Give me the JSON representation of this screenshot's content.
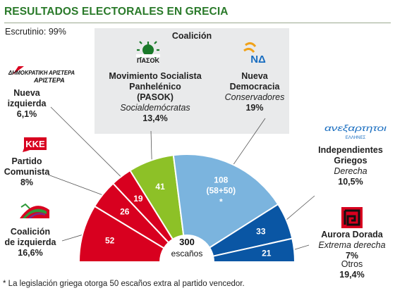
{
  "header": {
    "title": "RESULTADOS ELECTORALES EN GRECIA",
    "scrutiny": "Escrutinio: 99%"
  },
  "coalition": {
    "label": "Coalición"
  },
  "center": {
    "value": "300",
    "unit": "escaños"
  },
  "footnote": "* La legislación griega otorga 50 escaños extra al partido vencedor.",
  "logos": {
    "dimar": "ΔΗΜΟΚΡΑΤΙΚΗ ΑΡΙΣΤΕΡΑ",
    "kke": "KKE",
    "pasok": "ΠΑΣΟΚ",
    "nd": "ΝΔ",
    "anel": "ανεξαρτητοι",
    "anel_sub": "ΕΛΛΗΝΕΣ"
  },
  "parties": {
    "dimar": {
      "name1": "Nueva",
      "name2": "izquierda",
      "pct": "6,1%"
    },
    "kke": {
      "name1": "Partido",
      "name2": "Comunista",
      "pct": "8%"
    },
    "syriza": {
      "name1": "Coalición",
      "name2": "de izquierda",
      "pct": "16,6%"
    },
    "pasok": {
      "name1": "Movimiento Socialista",
      "name2": "Panhelénico",
      "name3": "(PASOK)",
      "ideology": "Socialdemócratas",
      "pct": "13,4%"
    },
    "nd": {
      "name1": "Nueva",
      "name2": "Democracia",
      "ideology": "Conservadores",
      "pct": "19%"
    },
    "anel": {
      "name1": "Independientes",
      "name2": "Griegos",
      "ideology": "Derecha",
      "pct": "10,5%"
    },
    "xa": {
      "name1": "Aurora Dorada",
      "ideology": "Extrema derecha",
      "pct": "7%"
    },
    "others": {
      "name1": "Otros",
      "pct": "19,4%"
    }
  },
  "chart_data": {
    "type": "pie",
    "subtype": "half-donut (parliament seats)",
    "title": "RESULTADOS ELECTORALES EN GRECIA",
    "total": 300,
    "categories": [
      "Coalición de izquierda",
      "Partido Comunista",
      "Nueva izquierda",
      "PASOK",
      "Nueva Democracia",
      "Independientes Griegos",
      "Aurora Dorada"
    ],
    "values": [
      52,
      26,
      19,
      41,
      108,
      33,
      21
    ],
    "labels": [
      "52",
      "26",
      "19",
      "41",
      "108",
      "33",
      "21"
    ],
    "sublabels": [
      "",
      "",
      "",
      "",
      "(58+50)",
      "",
      ""
    ],
    "marks": [
      "",
      "",
      "",
      "",
      "*",
      "",
      ""
    ],
    "colors": [
      "#d8001f",
      "#d8001f",
      "#d8001f",
      "#8dc127",
      "#7bb4de",
      "#0a56a4",
      "#0a56a4"
    ],
    "outer_colors": [
      "",
      "",
      "",
      "",
      "",
      "",
      "#0a56a4"
    ]
  }
}
